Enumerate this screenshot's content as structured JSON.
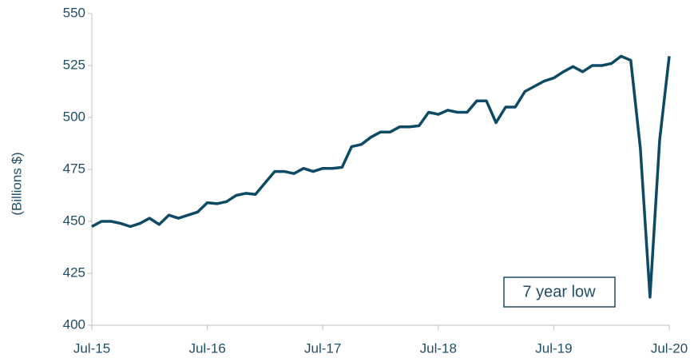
{
  "chart_data": {
    "type": "line",
    "y_label": "(Billions $)",
    "annotation": "7 year low",
    "categories": [
      "Jul-15",
      null,
      null,
      null,
      null,
      null,
      null,
      null,
      null,
      null,
      null,
      null,
      "Jul-16",
      null,
      null,
      null,
      null,
      null,
      null,
      null,
      null,
      null,
      null,
      null,
      "Jul-17",
      null,
      null,
      null,
      null,
      null,
      null,
      null,
      null,
      null,
      null,
      null,
      "Jul-18",
      null,
      null,
      null,
      null,
      null,
      null,
      null,
      null,
      null,
      null,
      null,
      "Jul-19",
      null,
      null,
      null,
      null,
      null,
      null,
      null,
      null,
      null,
      null,
      null,
      "Jul-20"
    ],
    "series": [
      {
        "name": "Value",
        "color": "#0e4a63",
        "values": [
          447.5,
          450,
          450,
          449,
          447.5,
          449,
          451.5,
          448.5,
          453,
          451.5,
          453,
          454.5,
          459,
          458.5,
          459.5,
          462.5,
          463.5,
          463,
          468.5,
          474,
          474,
          473,
          475.5,
          474,
          475.5,
          475.5,
          476,
          486,
          487,
          490.5,
          493,
          493,
          495.5,
          495.5,
          496,
          502.5,
          501.5,
          503.5,
          502.5,
          502.5,
          508,
          508,
          497.5,
          505,
          505,
          512.5,
          515,
          517.5,
          519,
          522,
          524.5,
          522,
          525,
          525,
          526,
          529.5,
          527.5,
          485,
          413.5,
          489,
          529.5
        ]
      }
    ],
    "ylim": [
      400,
      550
    ],
    "yticks": [
      400,
      425,
      450,
      475,
      500,
      525,
      550
    ]
  }
}
